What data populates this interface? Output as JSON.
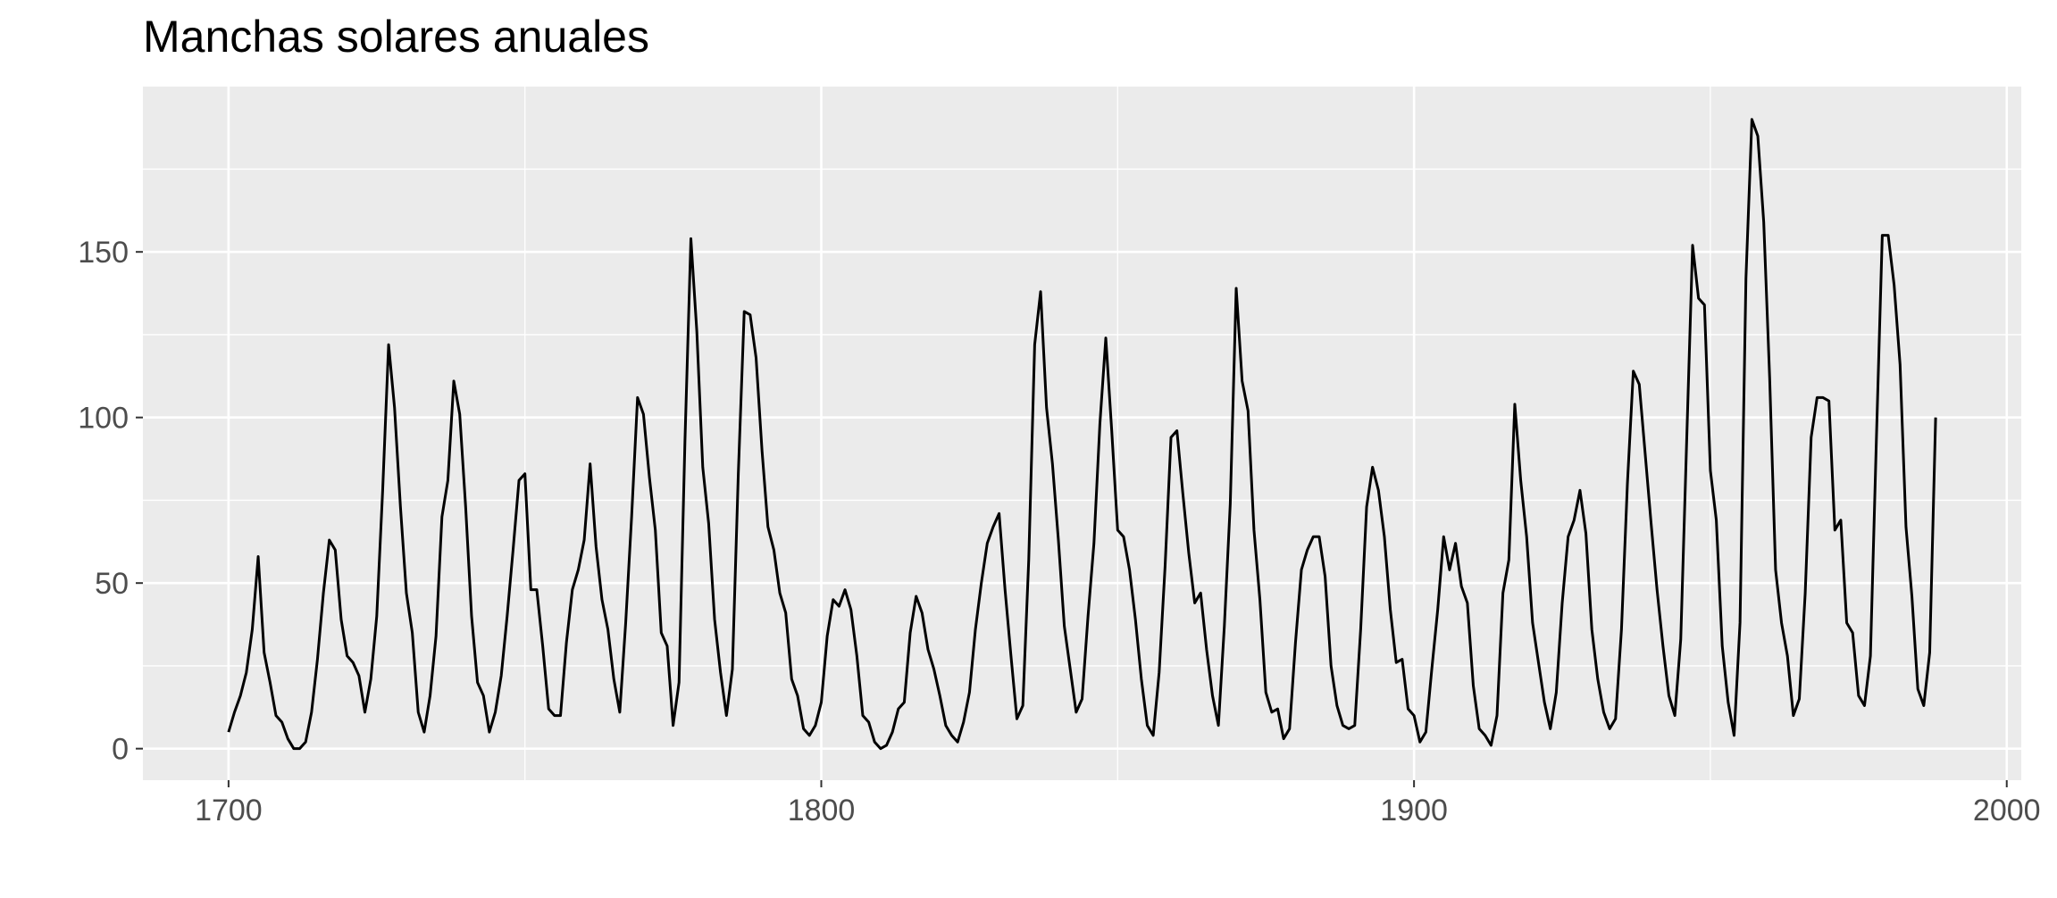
{
  "chart_data": {
    "type": "line",
    "title": "Manchas solares anuales",
    "xlabel": "",
    "ylabel": "",
    "xlim": [
      1685.55,
      2002.45
    ],
    "ylim": [
      -9.52,
      199.92
    ],
    "x_ticks": [
      1700,
      1800,
      1900,
      2000
    ],
    "y_ticks": [
      0,
      50,
      100,
      150
    ],
    "grid": true,
    "background": "#EBEBEB",
    "line_color": "#000000",
    "series": [
      {
        "x_start": 1700,
        "x_step": 1,
        "values": [
          5,
          11,
          16,
          23,
          36,
          58,
          29,
          20,
          10,
          8,
          3,
          0,
          0,
          2,
          11,
          27,
          47,
          63,
          60,
          39,
          28,
          26,
          22,
          11,
          21,
          40,
          78,
          122,
          103,
          73,
          47,
          35,
          11,
          5,
          16,
          34,
          70,
          81,
          111,
          101,
          73,
          40,
          20,
          16,
          5,
          11,
          22,
          40,
          60,
          81,
          83,
          48,
          48,
          31,
          12,
          10,
          10,
          32,
          48,
          54,
          63,
          86,
          61,
          45,
          36,
          21,
          11,
          38,
          70,
          106,
          101,
          82,
          66,
          35,
          31,
          7,
          20,
          93,
          154,
          126,
          85,
          68,
          39,
          23,
          10,
          24,
          83,
          132,
          131,
          118,
          90,
          67,
          60,
          47,
          41,
          21,
          16,
          6,
          4,
          7,
          14,
          34,
          45,
          43,
          48,
          42,
          28,
          10,
          8,
          2,
          0,
          1,
          5,
          12,
          14,
          35,
          46,
          41,
          30,
          24,
          16,
          7,
          4,
          2,
          8,
          17,
          36,
          50,
          62,
          67,
          71,
          48,
          28,
          9,
          13,
          57,
          122,
          138,
          103,
          86,
          63,
          37,
          24,
          11,
          15,
          40,
          62,
          98,
          124,
          96,
          66,
          64,
          54,
          39,
          21,
          7,
          4,
          23,
          55,
          94,
          96,
          77,
          59,
          44,
          47,
          30,
          16,
          7,
          37,
          74,
          139,
          111,
          102,
          66,
          45,
          17,
          11,
          12,
          3,
          6,
          32,
          54,
          60,
          64,
          64,
          52,
          25,
          13,
          7,
          6,
          7,
          36,
          73,
          85,
          78,
          64,
          42,
          26,
          27,
          12,
          10,
          2,
          5,
          24,
          42,
          64,
          54,
          62,
          49,
          44,
          19,
          6,
          4,
          1,
          10,
          47,
          57,
          104,
          81,
          64,
          38,
          26,
          14,
          6,
          17,
          44,
          64,
          69,
          78,
          65,
          36,
          21,
          11,
          6,
          9,
          36,
          80,
          114,
          110,
          89,
          68,
          48,
          31,
          16,
          10,
          33,
          93,
          152,
          136,
          134,
          84,
          69,
          31,
          14,
          4,
          38,
          142,
          190,
          185,
          159,
          112,
          54,
          38,
          28,
          10,
          15,
          47,
          94,
          106,
          106,
          105,
          66,
          69,
          38,
          35,
          16,
          13,
          28,
          93,
          155,
          155,
          140,
          116,
          67,
          46,
          18,
          13,
          29,
          100
        ]
      }
    ]
  }
}
